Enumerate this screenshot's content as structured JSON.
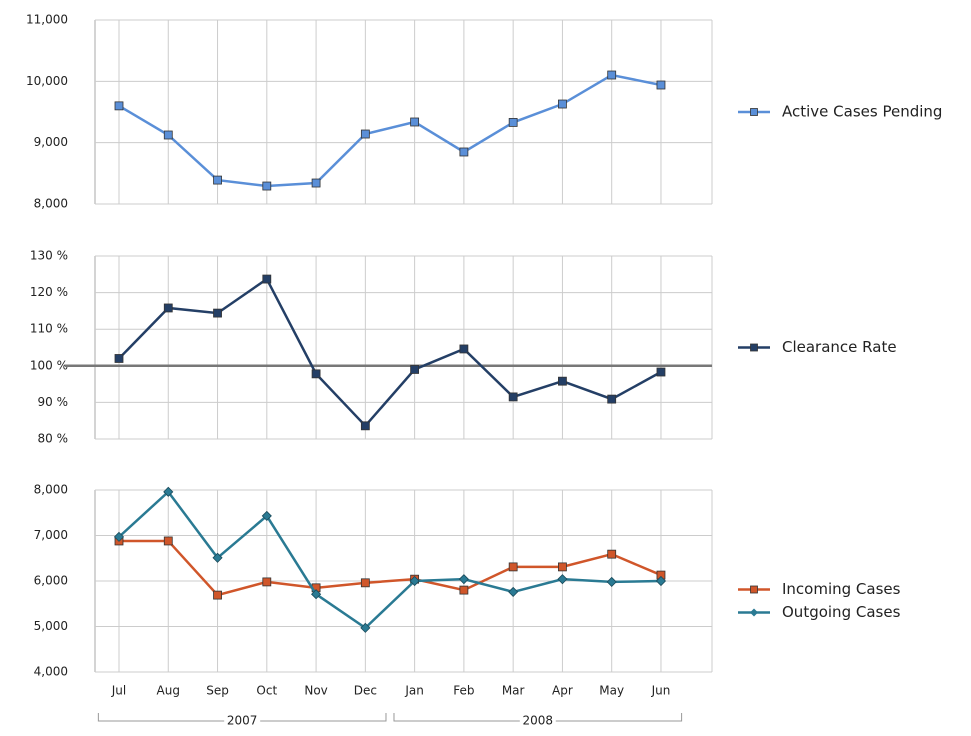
{
  "chart_data": [
    {
      "type": "line",
      "ylim": [
        8000,
        11000
      ],
      "yticks": [
        {
          "value": 8000,
          "label": "8,000"
        },
        {
          "value": 9000,
          "label": "9,000"
        },
        {
          "value": 10000,
          "label": "10,000"
        },
        {
          "value": 11000,
          "label": "11,000"
        }
      ],
      "grid": true,
      "series": [
        {
          "name": "Active Cases Pending",
          "color": "#5a8fd8",
          "marker": "square",
          "values": [
            9600,
            9125,
            8390,
            8293,
            8342,
            9141,
            9337,
            8848,
            9330,
            9630,
            10103,
            9940
          ]
        }
      ]
    },
    {
      "type": "line",
      "ylim": [
        80,
        130
      ],
      "yticks": [
        {
          "value": 80,
          "label": "80 %"
        },
        {
          "value": 90,
          "label": "90 %"
        },
        {
          "value": 100,
          "label": "100 %"
        },
        {
          "value": 110,
          "label": "110 %"
        },
        {
          "value": 120,
          "label": "120 %"
        },
        {
          "value": 130,
          "label": "130 %"
        }
      ],
      "grid": true,
      "reference_line": 100,
      "series": [
        {
          "name": "Clearance Rate",
          "color": "#243f66",
          "marker": "square",
          "values": [
            102,
            115.8,
            114.4,
            123.7,
            97.8,
            83.6,
            99,
            104.6,
            91.5,
            95.8,
            90.9,
            98.3
          ]
        }
      ]
    },
    {
      "type": "line",
      "ylim": [
        4000,
        8000
      ],
      "yticks": [
        {
          "value": 4000,
          "label": "4,000"
        },
        {
          "value": 5000,
          "label": "5,000"
        },
        {
          "value": 6000,
          "label": "6,000"
        },
        {
          "value": 7000,
          "label": "7,000"
        },
        {
          "value": 8000,
          "label": "8,000"
        }
      ],
      "grid": true,
      "categories": [
        "Jul",
        "Aug",
        "Sep",
        "Oct",
        "Nov",
        "Dec",
        "Jan",
        "Feb",
        "Mar",
        "Apr",
        "May",
        "Jun"
      ],
      "x_groups": [
        {
          "label": "2007",
          "count": 6
        },
        {
          "label": "2008",
          "count": 6
        }
      ],
      "series": [
        {
          "name": "Incoming Cases",
          "color": "#d0562a",
          "marker": "square",
          "values": [
            6880,
            6880,
            5690,
            5980,
            5850,
            5960,
            6040,
            5800,
            6310,
            6310,
            6590,
            6130
          ]
        },
        {
          "name": "Outgoing  Cases",
          "color": "#2a7a93",
          "marker": "diamond",
          "values": [
            6970,
            7960,
            6510,
            7430,
            5710,
            4970,
            6000,
            6040,
            5760,
            6040,
            5980,
            6000
          ]
        }
      ]
    }
  ]
}
